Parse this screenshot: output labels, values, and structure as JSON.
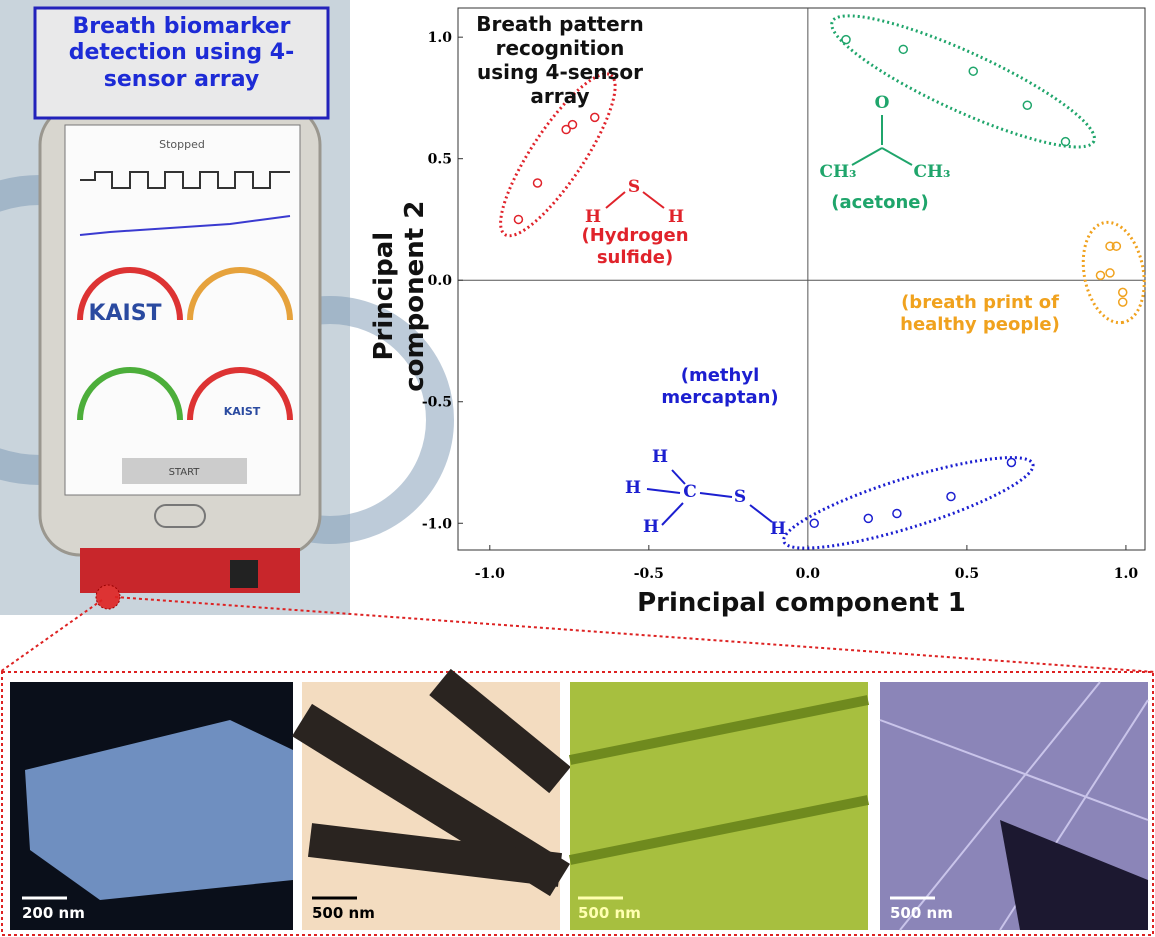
{
  "photo": {
    "label": "Breath biomarker detection using 4-sensor array",
    "screen_title": "Stopped",
    "button": "START",
    "logo": "KAIST"
  },
  "chart_data": {
    "type": "scatter",
    "title": "Breath pattern recognition using 4-sensor array",
    "xlabel": "Principal component 1",
    "ylabel": "Principal component 2",
    "xlim": [
      -1.1,
      1.06
    ],
    "ylim": [
      -1.11,
      1.12
    ],
    "xticks": [
      {
        "value": -1,
        "label": "-1.0"
      },
      -0.5,
      {
        "value": 0,
        "label": "0.0"
      },
      0.5,
      {
        "value": 1,
        "label": "1.0"
      }
    ],
    "yticks": [
      {
        "value": -1,
        "label": "-1.0"
      },
      -0.5,
      {
        "value": 0,
        "label": "0.0"
      },
      0.5,
      {
        "value": 1,
        "label": "1.0"
      }
    ],
    "series": [
      {
        "name": "(Hydrogen sulfide)",
        "color": "#e0232b",
        "formula": [
          "S",
          "H",
          "H"
        ],
        "x": [
          -0.91,
          -0.85,
          -0.76,
          -0.74,
          -0.67
        ],
        "values": [
          0.25,
          0.4,
          0.62,
          0.64,
          0.67
        ]
      },
      {
        "name": "(acetone)",
        "color": "#1fa56b",
        "formula": [
          "O",
          "CH₃",
          "CH₃"
        ],
        "x": [
          0.12,
          0.3,
          0.52,
          0.69,
          0.81
        ],
        "values": [
          0.99,
          0.95,
          0.86,
          0.72,
          0.57
        ]
      },
      {
        "name": "(breath print of healthy people)",
        "color": "#f0a21e",
        "formula": [],
        "x": [
          0.95,
          0.97,
          0.92,
          0.95,
          0.99,
          0.99
        ],
        "values": [
          0.14,
          0.14,
          0.02,
          0.03,
          -0.05,
          -0.09
        ]
      },
      {
        "name": "(methyl mercaptan)",
        "color": "#1c1fd0",
        "formula": [
          "H",
          "H",
          "H",
          "C",
          "S",
          "H"
        ],
        "x": [
          0.02,
          0.19,
          0.28,
          0.45,
          0.64
        ],
        "values": [
          -1.0,
          -0.98,
          -0.96,
          -0.89,
          -0.75
        ]
      }
    ]
  },
  "sem_images": {
    "scale_bars": [
      "200 nm",
      "500 nm",
      "500 nm",
      "500 nm"
    ]
  }
}
